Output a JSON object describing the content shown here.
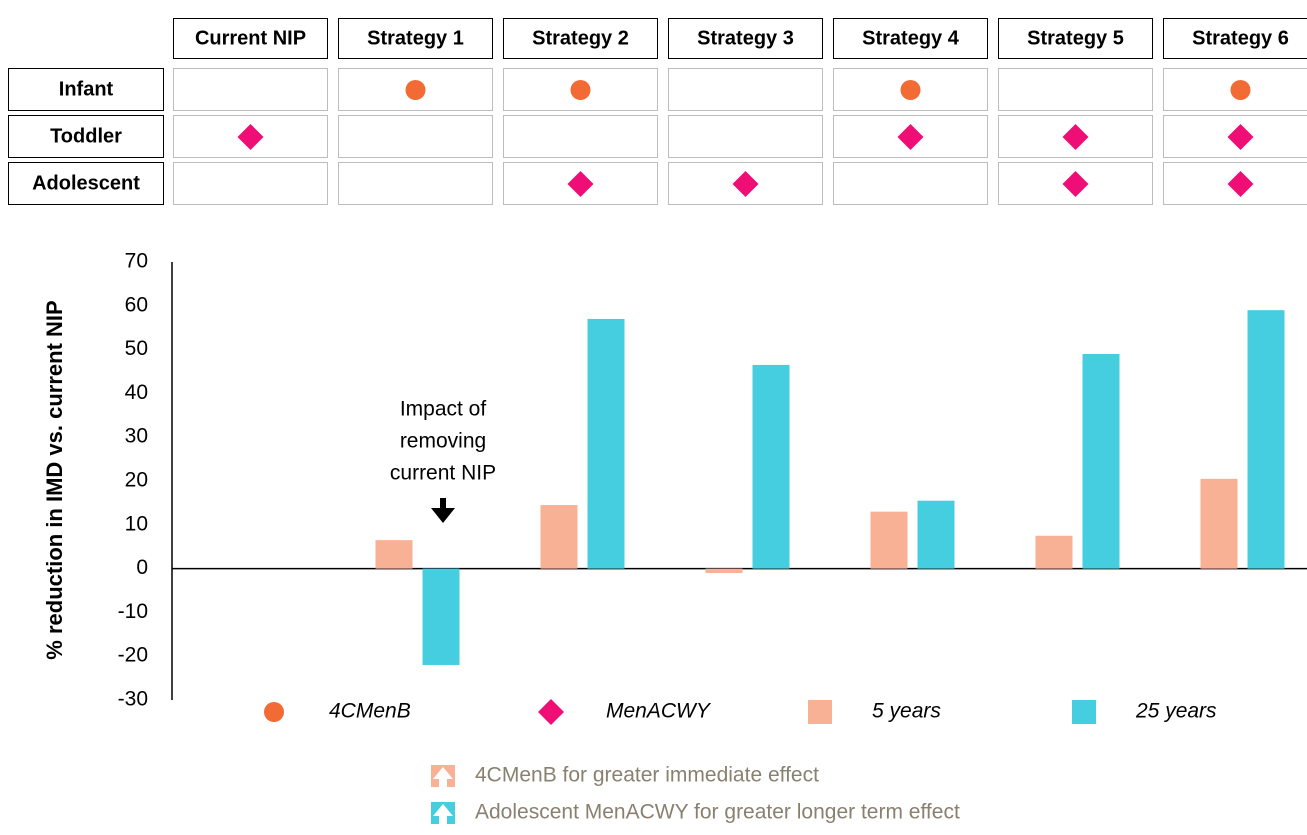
{
  "chart_data": {
    "type": "bar",
    "categories": [
      "Current NIP",
      "Strategy 1",
      "Strategy 2",
      "Strategy 3",
      "Strategy 4",
      "Strategy 5",
      "Strategy 6"
    ],
    "series": [
      {
        "name": "5 years",
        "color": "#f8b195",
        "values": [
          null,
          6.5,
          14.5,
          -1,
          13,
          7.5,
          20.5
        ]
      },
      {
        "name": "25 years",
        "color": "#45cde0",
        "values": [
          null,
          -22,
          57,
          46.5,
          15.5,
          49,
          59
        ]
      }
    ],
    "ylabel": "% reduction in IMD vs. current NIP",
    "ylim": [
      -30,
      70
    ],
    "yticks": [
      -30,
      -20,
      -10,
      0,
      10,
      20,
      30,
      40,
      50,
      60,
      70
    ],
    "annotation": [
      "Impact of",
      "removing",
      "current NIP"
    ],
    "markers": [
      {
        "name": "4CMenB",
        "shape": "circle",
        "color": "#f26b35"
      },
      {
        "name": "MenACWY",
        "shape": "diamond",
        "color": "#ee0e76"
      }
    ],
    "schedule": [
      {
        "age": "Infant",
        "shape": "circle",
        "color": "#f26b35",
        "given": [
          false,
          true,
          true,
          false,
          true,
          false,
          true
        ]
      },
      {
        "age": "Toddler",
        "shape": "diamond",
        "color": "#ee0e76",
        "given": [
          true,
          false,
          false,
          false,
          true,
          true,
          true
        ]
      },
      {
        "age": "Adolescent",
        "shape": "diamond",
        "color": "#ee0e76",
        "given": [
          false,
          false,
          true,
          true,
          false,
          true,
          true
        ]
      }
    ],
    "notes": [
      {
        "text": "4CMenB for greater immediate effect",
        "color": "#f8b195"
      },
      {
        "text": "Adolescent MenACWY for greater longer term effect",
        "color": "#45cde0"
      }
    ]
  }
}
